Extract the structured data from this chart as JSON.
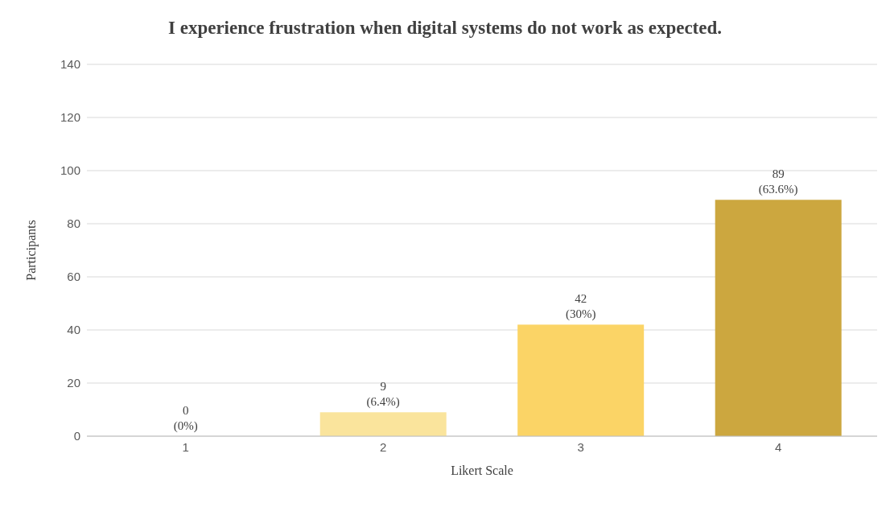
{
  "chart_data": {
    "type": "bar",
    "title": "I experience frustration when digital systems do not work as expected.",
    "xlabel": "Likert Scale",
    "ylabel": "Participants",
    "categories": [
      "1",
      "2",
      "3",
      "4"
    ],
    "values": [
      0,
      9,
      42,
      89
    ],
    "colors": [
      "#fdefc4",
      "#fae49c",
      "#fbd466",
      "#cca73f"
    ],
    "value_labels": [
      "0\n(0%)",
      "9\n(6.4%)",
      "42\n(30%)",
      "89\n(63.6%)"
    ],
    "ylim": [
      0,
      140
    ],
    "yticks": [
      0,
      20,
      40,
      60,
      80,
      100,
      120,
      140
    ],
    "grid": "y",
    "legend": false
  }
}
